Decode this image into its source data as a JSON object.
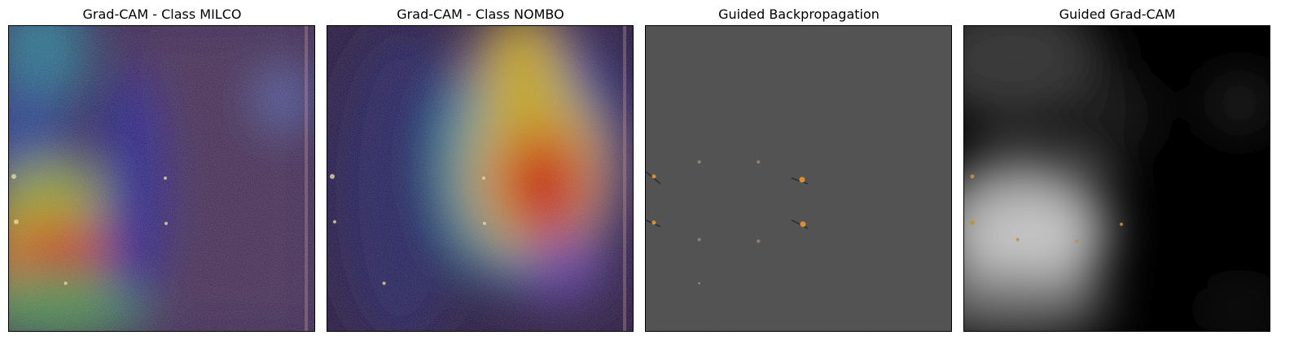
{
  "figure": {
    "panels": [
      {
        "title": "Grad-CAM - Class MILCO",
        "kind": "gradcam-milco"
      },
      {
        "title": "Grad-CAM - Class NOMBO",
        "kind": "gradcam-nombo"
      },
      {
        "title": "Guided Backpropagation",
        "kind": "guided-backprop"
      },
      {
        "title": "Guided Grad-CAM",
        "kind": "guided-gradcam"
      }
    ]
  }
}
